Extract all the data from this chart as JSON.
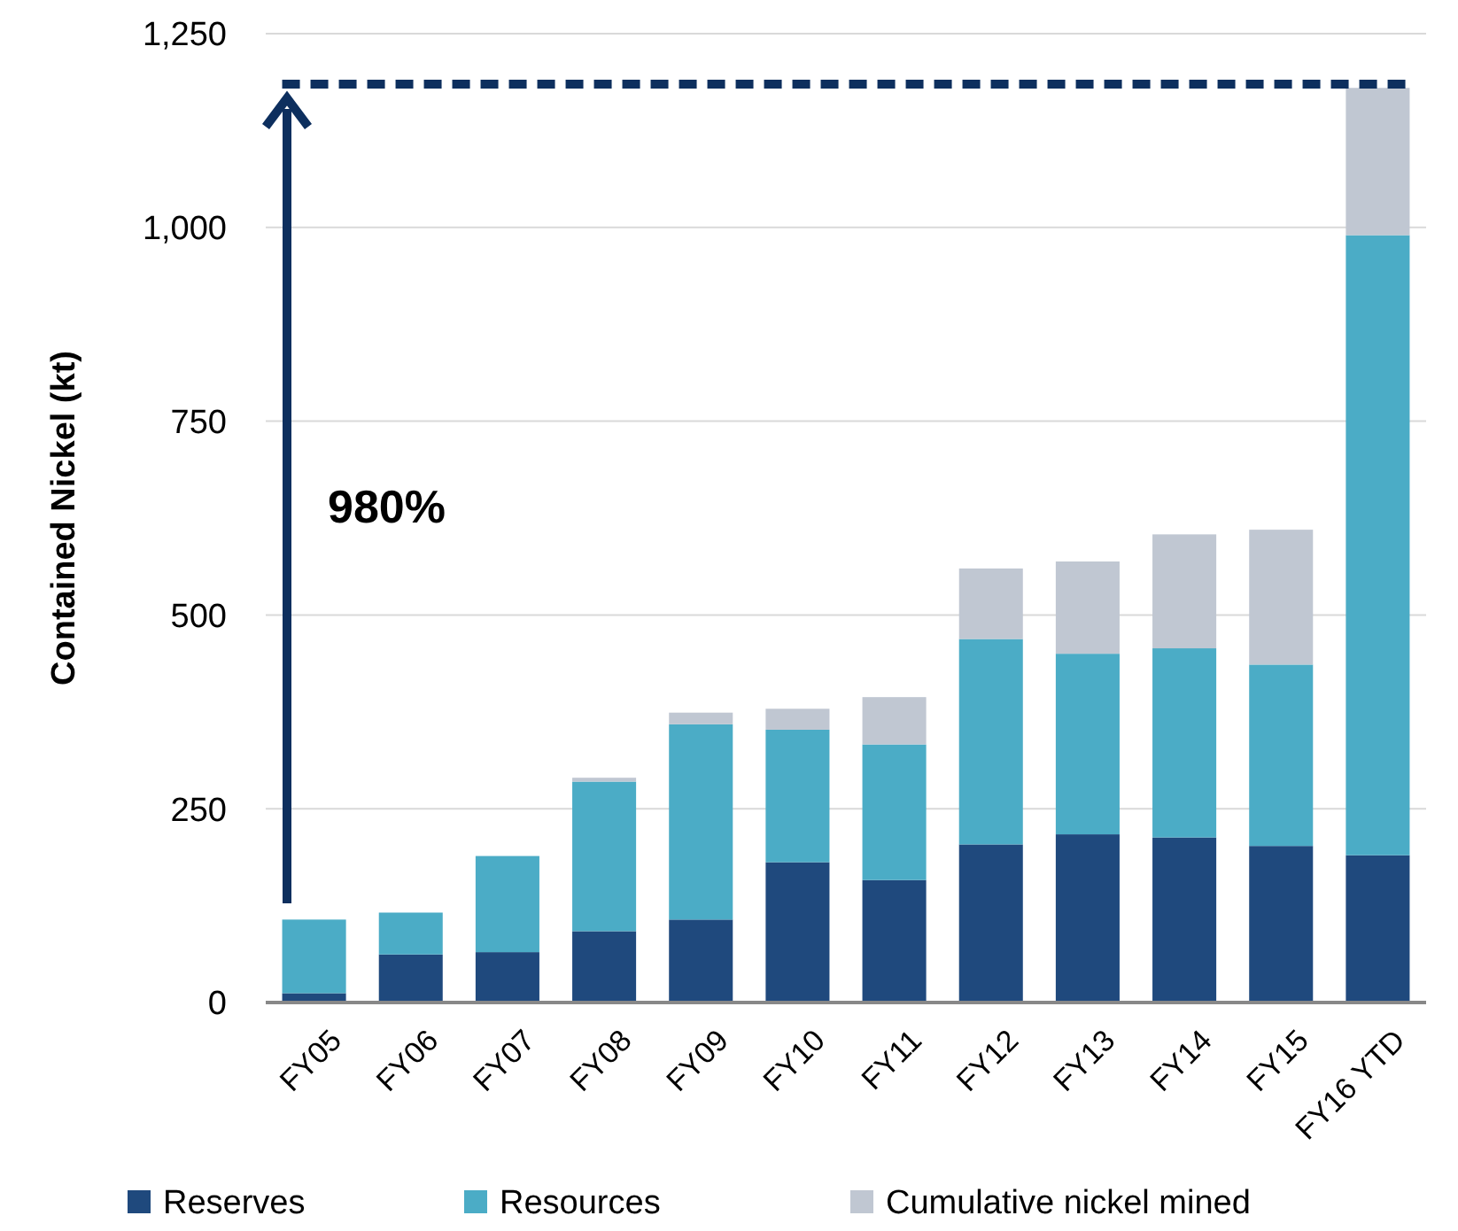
{
  "chart_data": {
    "type": "bar",
    "stacked": true,
    "ylabel": "Contained Nickel (kt)",
    "categories": [
      "FY05",
      "FY06",
      "FY07",
      "FY08",
      "FY09",
      "FY10",
      "FY11",
      "FY12",
      "FY13",
      "FY14",
      "FY15",
      "FY16 YTD"
    ],
    "series": [
      {
        "name": "Reserves",
        "color": "#1f497d",
        "values": [
          12,
          62,
          65,
          92,
          107,
          181,
          158,
          204,
          217,
          213,
          202,
          190
        ]
      },
      {
        "name": "Resources",
        "color": "#4bacc6",
        "values": [
          95,
          54,
          124,
          193,
          252,
          171,
          175,
          265,
          233,
          244,
          234,
          800
        ]
      },
      {
        "name": "Cumulative nickel mined",
        "color": "#c0c7d2",
        "values": [
          null,
          null,
          null,
          5,
          15,
          27,
          61,
          91,
          119,
          147,
          174,
          190
        ]
      }
    ],
    "ylim": [
      0,
      1250
    ],
    "yticks": [
      0,
      250,
      500,
      750,
      {
        "value": 1000,
        "label": "1,000"
      },
      {
        "value": 1250,
        "label": "1,250"
      }
    ],
    "grid": "y",
    "legend": "bottom",
    "ref_lines": [
      {
        "axis": "y",
        "value": 1185,
        "color": "#0d2f5e",
        "line_style": "dashed"
      }
    ],
    "annotations": [
      "980%"
    ]
  }
}
